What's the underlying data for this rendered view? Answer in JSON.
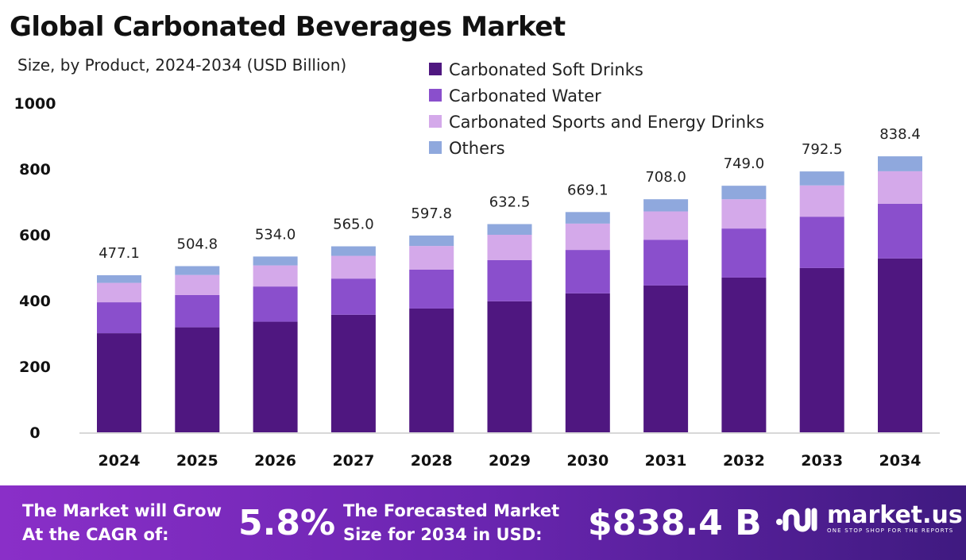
{
  "chart_data": {
    "type": "bar",
    "stacked": true,
    "title": "Global Carbonated Beverages Market",
    "subtitle": "Size, by Product, 2024-2034 (USD Billion)",
    "categories": [
      "2024",
      "2025",
      "2026",
      "2027",
      "2028",
      "2029",
      "2030",
      "2031",
      "2032",
      "2033",
      "2034"
    ],
    "series": [
      {
        "name": "Carbonated Soft Drinks",
        "color": "#4f1780",
        "values": [
          301,
          319,
          336,
          357,
          376,
          398,
          422,
          446,
          470,
          499,
          528
        ]
      },
      {
        "name": "Carbonated Water",
        "color": "#8a4fcc",
        "values": [
          94,
          98,
          107,
          110,
          118,
          125,
          132,
          139,
          149,
          156,
          166
        ]
      },
      {
        "name": "Carbonated Sports and Energy Drinks",
        "color": "#d4a9ea",
        "values": [
          59,
          61,
          64,
          69,
          72,
          77,
          80,
          86,
          89,
          95,
          99
        ]
      },
      {
        "name": "Others",
        "color": "#8fa8dd",
        "values": [
          23.1,
          26.8,
          27,
          29,
          31.8,
          32.5,
          35.1,
          37,
          41,
          42.5,
          45.4
        ]
      }
    ],
    "totals": [
      "477.1",
      "504.8",
      "534.0",
      "565.0",
      "597.8",
      "632.5",
      "669.1",
      "708.0",
      "749.0",
      "792.5",
      "838.4"
    ],
    "yticks": [
      "0",
      "200",
      "400",
      "600",
      "800",
      "1000"
    ],
    "ylim": [
      0,
      1000
    ],
    "grid": false,
    "legend": "top"
  },
  "footer": {
    "cagr_label_1": "The Market will Grow",
    "cagr_label_2": "At the CAGR of:",
    "cagr_value": "5.8%",
    "forecast_label_1": "The Forecasted Market",
    "forecast_label_2": "Size for 2034 in USD:",
    "forecast_value": "$838.4 B",
    "brand": "market.us",
    "tagline": "ONE STOP SHOP FOR THE REPORTS"
  }
}
